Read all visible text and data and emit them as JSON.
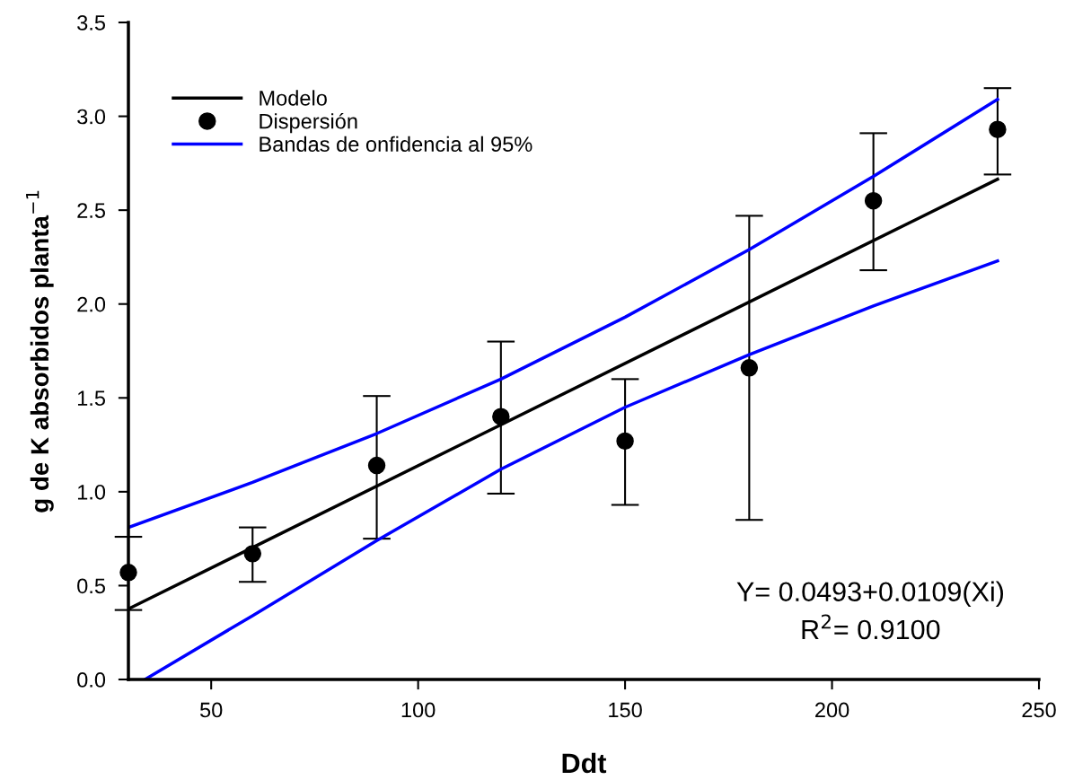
{
  "chart_data": {
    "type": "scatter",
    "xlabel": "Ddt",
    "ylabel": "g de K absorbidos planta$^{−1}$",
    "xlim": [
      30,
      250
    ],
    "xticks": [
      50,
      100,
      150,
      200,
      250
    ],
    "ylim": [
      0,
      3.5
    ],
    "yticks": [
      {
        "value": 0,
        "label": "0.0"
      },
      {
        "value": 0.5,
        "label": "0.5"
      },
      {
        "value": 1,
        "label": "1.0"
      },
      {
        "value": 1.5,
        "label": "1.5"
      },
      {
        "value": 2,
        "label": "2.0"
      },
      {
        "value": 2.5,
        "label": "2.5"
      },
      {
        "value": 3,
        "label": "3.0"
      },
      {
        "value": 3.5,
        "label": "3.5"
      }
    ],
    "grid": false,
    "legend": "top left",
    "series": [
      {
        "name": "Modelo",
        "type": "line",
        "color": "#000000",
        "x": [
          30,
          240
        ],
        "values": [
          0.376,
          2.665
        ]
      },
      {
        "name": "Dispersión",
        "marker": "circle",
        "color": "#000000",
        "x": [
          30,
          60,
          90,
          120,
          150,
          180,
          210,
          240
        ],
        "values": [
          0.57,
          0.67,
          1.14,
          1.4,
          1.27,
          1.66,
          2.55,
          2.93
        ],
        "errors": [
          [
            0.37,
            0.76
          ],
          [
            0.52,
            0.81
          ],
          [
            0.75,
            1.51
          ],
          [
            0.99,
            1.8
          ],
          [
            0.93,
            1.6
          ],
          [
            0.85,
            2.47
          ],
          [
            2.18,
            2.91
          ],
          [
            2.69,
            3.15
          ]
        ]
      },
      {
        "name": "Bandas de onfidencia al 95%",
        "type": "line",
        "color": "#0000ff",
        "x": [
          30,
          60,
          90,
          120,
          150,
          180,
          210,
          240
        ],
        "values": [
          0.81,
          1.05,
          1.31,
          1.6,
          1.93,
          2.29,
          2.68,
          3.09
        ]
      },
      {
        "type": "line",
        "color": "#0000ff",
        "x": [
          34,
          60,
          90,
          120,
          150,
          180,
          210,
          240
        ],
        "values": [
          0,
          0.34,
          0.74,
          1.12,
          1.45,
          1.73,
          1.99,
          2.23
        ]
      }
    ],
    "annotations": [
      "Y= 0.0493+0.0109(Xi)",
      "R$^{2}$= 0.9100"
    ]
  }
}
